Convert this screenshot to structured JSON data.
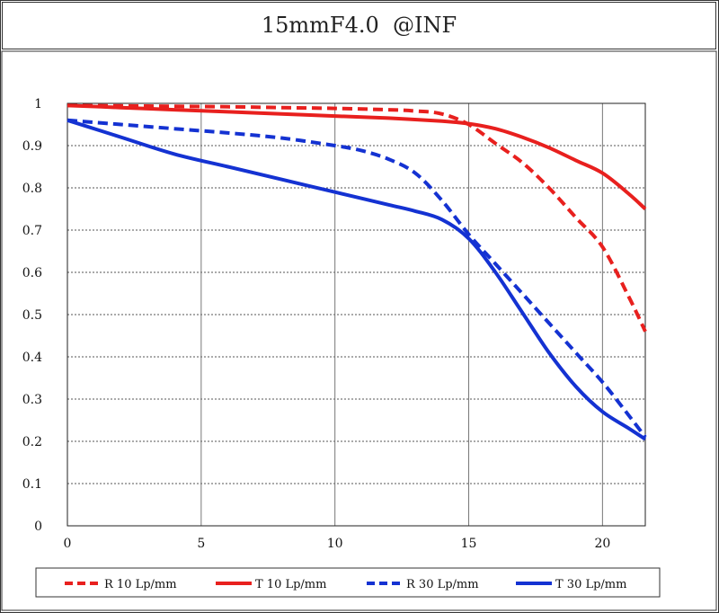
{
  "title": "15mmF4.0  @INF",
  "chart_data": {
    "type": "line",
    "title": "15mmF4.0  @INF",
    "xlabel": "",
    "ylabel": "",
    "xlim": [
      0,
      21.6
    ],
    "ylim": [
      0,
      1
    ],
    "xticks": [
      0,
      5,
      10,
      15,
      20
    ],
    "yticks": [
      0,
      0.1,
      0.2,
      0.3,
      0.4,
      0.5,
      0.6,
      0.7,
      0.8,
      0.9,
      1
    ],
    "grid": true,
    "legend_position": "bottom",
    "series": [
      {
        "name": "R 10 Lp/mm",
        "color": "#e8201e",
        "dash": true,
        "x": [
          0,
          2,
          4,
          6,
          8,
          10,
          12,
          13,
          14,
          15,
          16,
          17,
          18,
          19,
          20,
          21,
          21.6
        ],
        "y": [
          0.995,
          0.994,
          0.993,
          0.992,
          0.99,
          0.988,
          0.985,
          0.982,
          0.975,
          0.95,
          0.905,
          0.86,
          0.8,
          0.73,
          0.66,
          0.54,
          0.46
        ]
      },
      {
        "name": "T 10 Lp/mm",
        "color": "#e8201e",
        "dash": false,
        "x": [
          0,
          2,
          4,
          6,
          8,
          10,
          12,
          14,
          15,
          16,
          17,
          18,
          19,
          20,
          21,
          21.6
        ],
        "y": [
          0.995,
          0.99,
          0.985,
          0.98,
          0.975,
          0.97,
          0.965,
          0.958,
          0.952,
          0.94,
          0.92,
          0.895,
          0.865,
          0.835,
          0.785,
          0.75
        ]
      },
      {
        "name": "R 30 Lp/mm",
        "color": "#1432d2",
        "dash": true,
        "x": [
          0,
          2,
          4,
          6,
          8,
          10,
          11,
          12,
          13,
          14,
          15,
          16,
          17,
          18,
          19,
          20,
          21,
          21.6
        ],
        "y": [
          0.96,
          0.95,
          0.94,
          0.93,
          0.918,
          0.9,
          0.888,
          0.868,
          0.835,
          0.77,
          0.69,
          0.62,
          0.55,
          0.48,
          0.41,
          0.34,
          0.26,
          0.21
        ]
      },
      {
        "name": "T 30 Lp/mm",
        "color": "#1432d2",
        "dash": false,
        "x": [
          0,
          2,
          4,
          6,
          8,
          10,
          12,
          13,
          14,
          15,
          16,
          17,
          18,
          19,
          20,
          21,
          21.6
        ],
        "y": [
          0.96,
          0.92,
          0.88,
          0.85,
          0.82,
          0.79,
          0.76,
          0.745,
          0.725,
          0.68,
          0.6,
          0.505,
          0.41,
          0.33,
          0.27,
          0.23,
          0.205
        ]
      }
    ]
  }
}
